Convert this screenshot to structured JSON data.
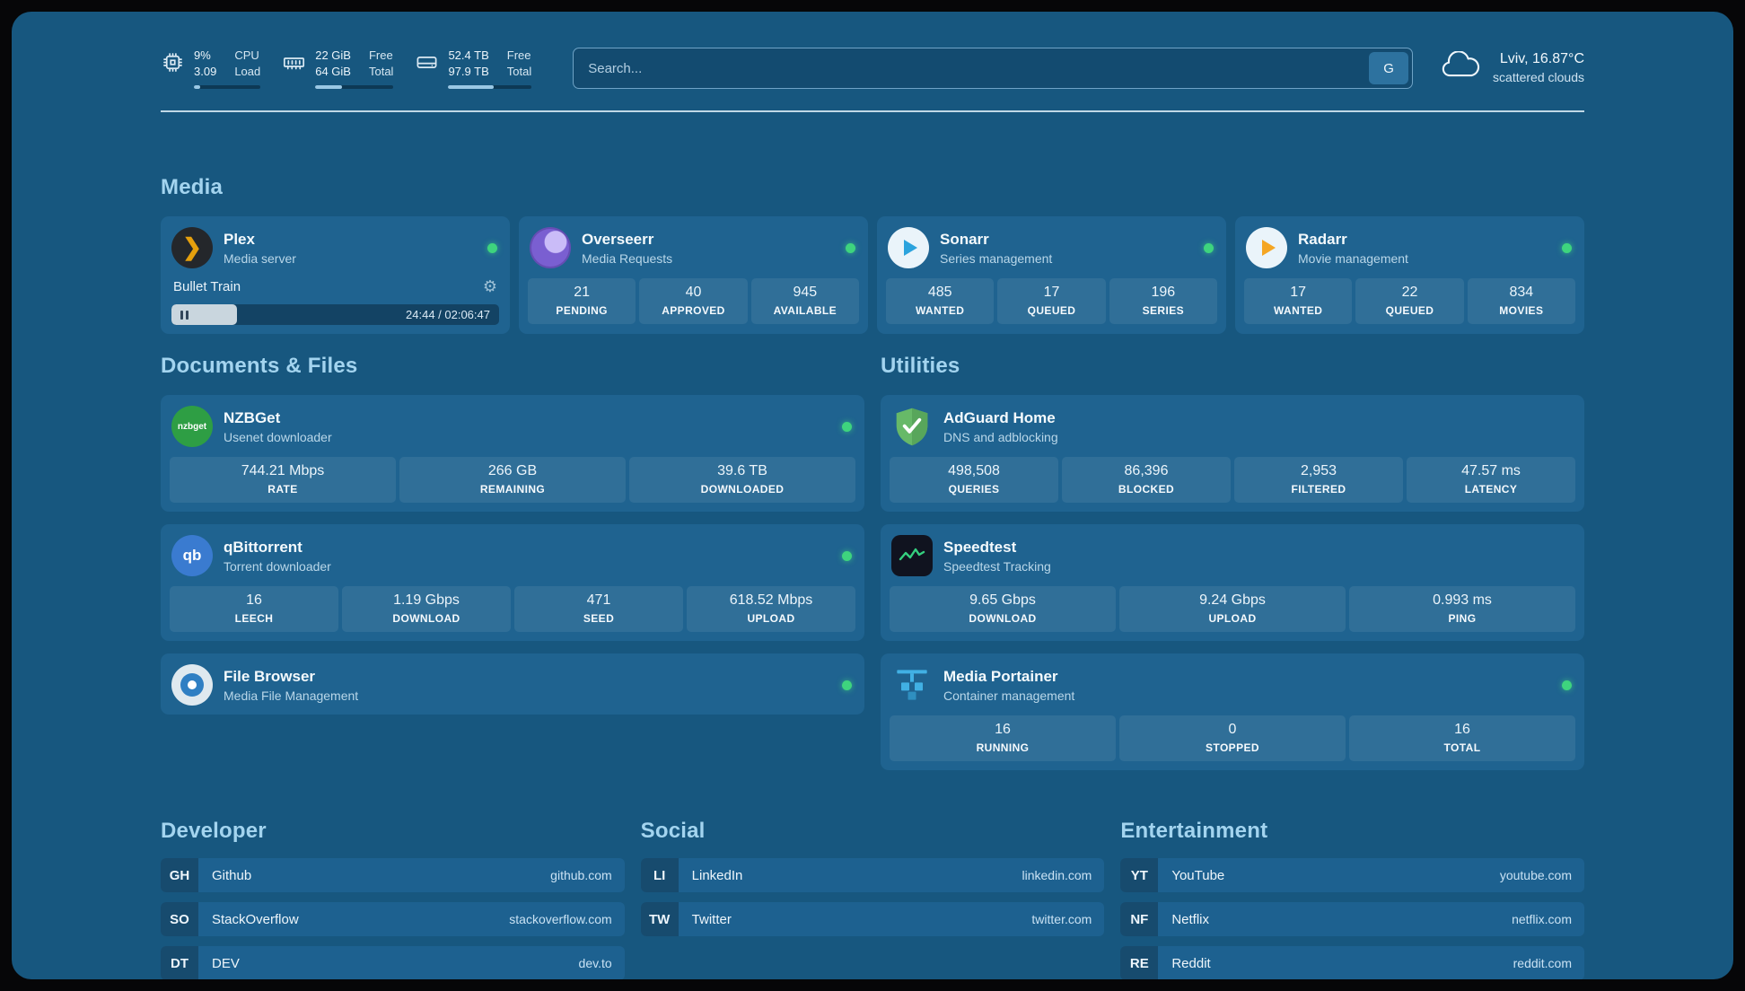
{
  "topbar": {
    "system": [
      {
        "name": "cpu",
        "values": [
          "9%",
          "3.09"
        ],
        "labels": [
          "CPU",
          "Load"
        ],
        "percent": 9
      },
      {
        "name": "ram",
        "values": [
          "22 GiB",
          "64 GiB"
        ],
        "labels": [
          "Free",
          "Total"
        ],
        "percent": 34
      },
      {
        "name": "disk",
        "values": [
          "52.4 TB",
          "97.9 TB"
        ],
        "labels": [
          "Free",
          "Total"
        ],
        "percent": 54
      }
    ],
    "search": {
      "placeholder": "Search...",
      "button_label": "G"
    },
    "weather": {
      "location": "Lviv, 16.87°C",
      "condition": "scattered clouds"
    }
  },
  "media": {
    "title": "Media",
    "plex": {
      "name": "Plex",
      "subtitle": "Media server",
      "online": true,
      "now_playing": "Bullet Train",
      "time": "24:44 / 02:06:47",
      "progress_percent": 20
    },
    "apps": [
      {
        "name": "Overseerr",
        "subtitle": "Media Requests",
        "online": true,
        "stats": [
          {
            "value": "21",
            "label": "PENDING"
          },
          {
            "value": "40",
            "label": "APPROVED"
          },
          {
            "value": "945",
            "label": "AVAILABLE"
          }
        ]
      },
      {
        "name": "Sonarr",
        "subtitle": "Series management",
        "online": true,
        "stats": [
          {
            "value": "485",
            "label": "WANTED"
          },
          {
            "value": "17",
            "label": "QUEUED"
          },
          {
            "value": "196",
            "label": "SERIES"
          }
        ]
      },
      {
        "name": "Radarr",
        "subtitle": "Movie management",
        "online": true,
        "stats": [
          {
            "value": "17",
            "label": "WANTED"
          },
          {
            "value": "22",
            "label": "QUEUED"
          },
          {
            "value": "834",
            "label": "MOVIES"
          }
        ]
      }
    ]
  },
  "documents": {
    "title": "Documents & Files",
    "apps": [
      {
        "name": "NZBGet",
        "subtitle": "Usenet downloader",
        "online": true,
        "stats": [
          {
            "value": "744.21 Mbps",
            "label": "RATE"
          },
          {
            "value": "266 GB",
            "label": "REMAINING"
          },
          {
            "value": "39.6 TB",
            "label": "DOWNLOADED"
          }
        ]
      },
      {
        "name": "qBittorrent",
        "subtitle": "Torrent downloader",
        "online": true,
        "stats": [
          {
            "value": "16",
            "label": "LEECH"
          },
          {
            "value": "1.19 Gbps",
            "label": "DOWNLOAD"
          },
          {
            "value": "471",
            "label": "SEED"
          },
          {
            "value": "618.52 Mbps",
            "label": "UPLOAD"
          }
        ]
      },
      {
        "name": "File Browser",
        "subtitle": "Media File Management",
        "online": true,
        "stats": []
      }
    ]
  },
  "utilities": {
    "title": "Utilities",
    "apps": [
      {
        "name": "AdGuard Home",
        "subtitle": "DNS and adblocking",
        "stats": [
          {
            "value": "498,508",
            "label": "QUERIES"
          },
          {
            "value": "86,396",
            "label": "BLOCKED"
          },
          {
            "value": "2,953",
            "label": "FILTERED"
          },
          {
            "value": "47.57 ms",
            "label": "LATENCY"
          }
        ]
      },
      {
        "name": "Speedtest",
        "subtitle": "Speedtest Tracking",
        "stats": [
          {
            "value": "9.65 Gbps",
            "label": "DOWNLOAD"
          },
          {
            "value": "9.24 Gbps",
            "label": "UPLOAD"
          },
          {
            "value": "0.993 ms",
            "label": "PING"
          }
        ]
      },
      {
        "name": "Media Portainer",
        "subtitle": "Container management",
        "online": true,
        "stats": [
          {
            "value": "16",
            "label": "RUNNING"
          },
          {
            "value": "0",
            "label": "STOPPED"
          },
          {
            "value": "16",
            "label": "TOTAL"
          }
        ]
      }
    ]
  },
  "links": {
    "groups": [
      {
        "title": "Developer",
        "items": [
          {
            "abbr": "GH",
            "label": "Github",
            "url": "github.com"
          },
          {
            "abbr": "SO",
            "label": "StackOverflow",
            "url": "stackoverflow.com"
          },
          {
            "abbr": "DT",
            "label": "DEV",
            "url": "dev.to"
          }
        ]
      },
      {
        "title": "Social",
        "items": [
          {
            "abbr": "LI",
            "label": "LinkedIn",
            "url": "linkedin.com"
          },
          {
            "abbr": "TW",
            "label": "Twitter",
            "url": "twitter.com"
          }
        ]
      },
      {
        "title": "Entertainment",
        "items": [
          {
            "abbr": "YT",
            "label": "YouTube",
            "url": "youtube.com"
          },
          {
            "abbr": "NF",
            "label": "Netflix",
            "url": "netflix.com"
          },
          {
            "abbr": "RE",
            "label": "Reddit",
            "url": "reddit.com"
          }
        ]
      }
    ]
  },
  "icons": {
    "plex_glyph": "❯",
    "gear_glyph": "⚙",
    "nzbget_text": "nzbget",
    "qbittorrent_text": "qb"
  },
  "colors": {
    "status_online": "#3ed47e",
    "accent_title": "#a3d4ef",
    "background": "#17577f",
    "card": "#1f6390"
  }
}
